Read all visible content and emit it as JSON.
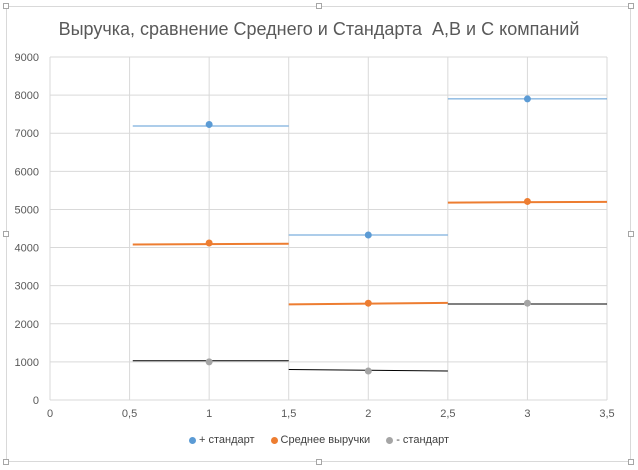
{
  "chart_data": {
    "type": "scatter",
    "title": "Выручка, сравнение Среднего и Стандарта  А,В и С компаний",
    "xlabel": "",
    "ylabel": "",
    "xlim": [
      0,
      3.5
    ],
    "ylim": [
      0,
      9000
    ],
    "x_ticks": [
      "0",
      "0,5",
      "1",
      "1,5",
      "2",
      "2,5",
      "3",
      "3,5"
    ],
    "x_tick_values": [
      0,
      0.5,
      1,
      1.5,
      2,
      2.5,
      3,
      3.5
    ],
    "y_ticks": [
      "0",
      "1000",
      "2000",
      "3000",
      "4000",
      "5000",
      "6000",
      "7000",
      "8000",
      "9000"
    ],
    "y_tick_values": [
      0,
      1000,
      2000,
      3000,
      4000,
      5000,
      6000,
      7000,
      8000,
      9000
    ],
    "grid": true,
    "legend_position": "bottom",
    "series": [
      {
        "name": "+ стандарт",
        "color": "#5b9bd5",
        "points": [
          {
            "x": 1,
            "y": 7230
          },
          {
            "x": 2,
            "y": 4330
          },
          {
            "x": 3,
            "y": 7900
          }
        ],
        "segments": [
          {
            "x1": 0.52,
            "y1": 7190,
            "x2": 1.5,
            "y2": 7190
          },
          {
            "x1": 1.5,
            "y1": 4330,
            "x2": 2.5,
            "y2": 4330
          },
          {
            "x1": 2.5,
            "y1": 7900,
            "x2": 3.5,
            "y2": 7900
          }
        ],
        "line_width": 1
      },
      {
        "name": "Среднее выручки",
        "color": "#ed7d31",
        "points": [
          {
            "x": 1,
            "y": 4120
          },
          {
            "x": 2,
            "y": 2540
          },
          {
            "x": 3,
            "y": 5210
          }
        ],
        "segments": [
          {
            "x1": 0.52,
            "y1": 4080,
            "x2": 1.5,
            "y2": 4100
          },
          {
            "x1": 1.5,
            "y1": 2510,
            "x2": 2.5,
            "y2": 2550
          },
          {
            "x1": 2.5,
            "y1": 5180,
            "x2": 3.5,
            "y2": 5200
          }
        ],
        "line_width": 2
      },
      {
        "name": "- стандарт",
        "color": "#a5a5a5",
        "line_color": "#000000",
        "points": [
          {
            "x": 1,
            "y": 1000
          },
          {
            "x": 2,
            "y": 760
          },
          {
            "x": 3,
            "y": 2540
          }
        ],
        "segments": [
          {
            "x1": 0.52,
            "y1": 1030,
            "x2": 1.5,
            "y2": 1030
          },
          {
            "x1": 1.5,
            "y1": 800,
            "x2": 2.5,
            "y2": 760
          },
          {
            "x1": 2.5,
            "y1": 2520,
            "x2": 3.5,
            "y2": 2520
          }
        ],
        "line_width": 1
      }
    ]
  }
}
